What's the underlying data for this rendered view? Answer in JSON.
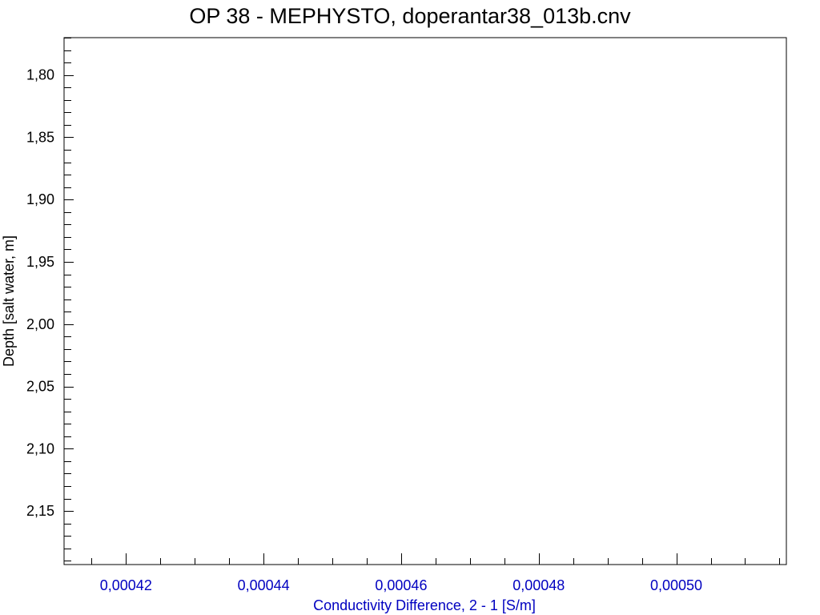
{
  "chart_data": {
    "type": "line",
    "title": "OP 38 - MEPHYSTO, doperantar38_013b.cnv",
    "xlabel": "Conductivity Difference, 2 - 1 [S/m]",
    "ylabel": "Depth [salt water, m]",
    "xlim": [
      0.000411,
      0.000516
    ],
    "ylim": [
      2.193,
      1.77
    ],
    "y_inverted": true,
    "x_ticks": [
      0.00042,
      0.00044,
      0.00046,
      0.00048,
      0.0005
    ],
    "x_tick_labels": [
      "0,00042",
      "0,00044",
      "0,00046",
      "0,00048",
      "0,00050"
    ],
    "x_minor_step": 5e-06,
    "y_ticks": [
      1.8,
      1.85,
      1.9,
      1.95,
      2.0,
      2.05,
      2.1,
      2.15
    ],
    "y_tick_labels": [
      "1,80",
      "1,85",
      "1,90",
      "1,95",
      "2,00",
      "2,05",
      "2,10",
      "2,15"
    ],
    "y_minor_step": 0.01,
    "series": [],
    "grid": false,
    "colors": {
      "x_axis": "#0000c0",
      "y_axis": "#000000",
      "frame": "#000000"
    }
  }
}
